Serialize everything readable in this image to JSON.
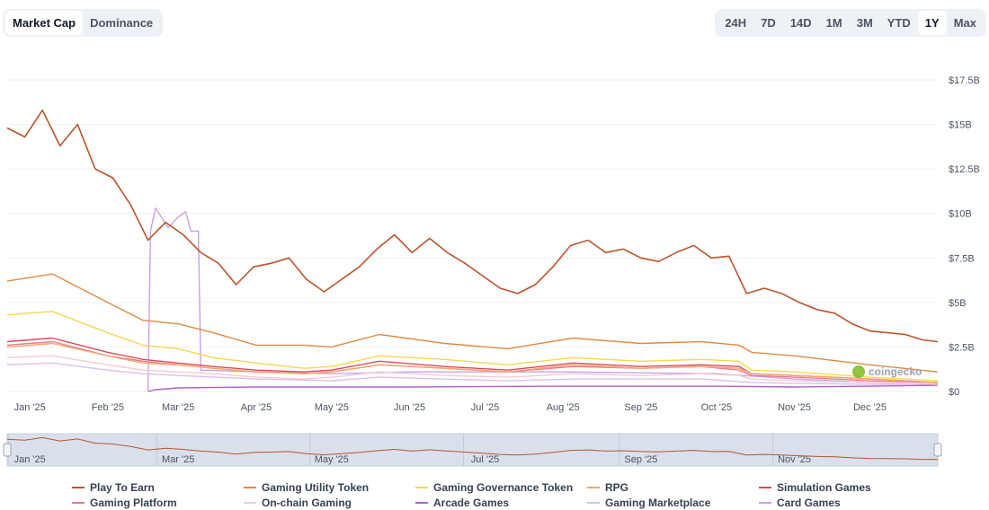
{
  "tabs": {
    "items": [
      "Market Cap",
      "Dominance"
    ],
    "active": "Market Cap"
  },
  "ranges": {
    "items": [
      "24H",
      "7D",
      "14D",
      "1M",
      "3M",
      "YTD",
      "1Y",
      "Max"
    ],
    "active": "1Y"
  },
  "watermark": "coingecko",
  "chart_data": {
    "type": "line",
    "xlim": [
      "2024-12-23",
      "2025-12-28"
    ],
    "ylim": [
      0,
      17.5
    ],
    "yticks": [
      {
        "v": 0,
        "label": "$0"
      },
      {
        "v": 2.5,
        "label": "$2.5B"
      },
      {
        "v": 5,
        "label": "$5B"
      },
      {
        "v": 7.5,
        "label": "$7.5B"
      },
      {
        "v": 10,
        "label": "$10B"
      },
      {
        "v": 12.5,
        "label": "$12.5B"
      },
      {
        "v": 15,
        "label": "$15B"
      },
      {
        "v": 17.5,
        "label": "$17.5B"
      }
    ],
    "xticks": [
      {
        "d": "2025-01-01",
        "label": "Jan '25"
      },
      {
        "d": "2025-02-01",
        "label": "Feb '25"
      },
      {
        "d": "2025-03-01",
        "label": "Mar '25"
      },
      {
        "d": "2025-04-01",
        "label": "Apr '25"
      },
      {
        "d": "2025-05-01",
        "label": "May '25"
      },
      {
        "d": "2025-06-01",
        "label": "Jun '25"
      },
      {
        "d": "2025-07-01",
        "label": "Jul '25"
      },
      {
        "d": "2025-08-01",
        "label": "Aug '25"
      },
      {
        "d": "2025-09-01",
        "label": "Sep '25"
      },
      {
        "d": "2025-10-01",
        "label": "Oct '25"
      },
      {
        "d": "2025-11-01",
        "label": "Nov '25"
      },
      {
        "d": "2025-12-01",
        "label": "Dec '25"
      }
    ],
    "navigator_ticks": [
      {
        "d": "2025-01-01",
        "label": "Jan '25"
      },
      {
        "d": "2025-03-01",
        "label": "Mar '25"
      },
      {
        "d": "2025-05-01",
        "label": "May '25"
      },
      {
        "d": "2025-07-01",
        "label": "Jul '25"
      },
      {
        "d": "2025-09-01",
        "label": "Sep '25"
      },
      {
        "d": "2025-11-01",
        "label": "Nov '25"
      }
    ],
    "grid": true,
    "legend_position": "bottom",
    "unit": "USD billions",
    "series": [
      {
        "name": "Play To Earn",
        "color": "#b9552c",
        "points": [
          [
            "2024-12-23",
            14.8
          ],
          [
            "2024-12-30",
            14.3
          ],
          [
            "2025-01-06",
            15.8
          ],
          [
            "2025-01-13",
            13.8
          ],
          [
            "2025-01-20",
            15.0
          ],
          [
            "2025-01-27",
            12.5
          ],
          [
            "2025-02-03",
            12.0
          ],
          [
            "2025-02-10",
            10.5
          ],
          [
            "2025-02-17",
            8.5
          ],
          [
            "2025-02-24",
            9.5
          ],
          [
            "2025-03-03",
            8.8
          ],
          [
            "2025-03-10",
            7.8
          ],
          [
            "2025-03-17",
            7.2
          ],
          [
            "2025-03-24",
            6.0
          ],
          [
            "2025-03-31",
            7.0
          ],
          [
            "2025-04-07",
            7.2
          ],
          [
            "2025-04-14",
            7.5
          ],
          [
            "2025-04-21",
            6.3
          ],
          [
            "2025-04-28",
            5.6
          ],
          [
            "2025-05-05",
            6.3
          ],
          [
            "2025-05-12",
            7.0
          ],
          [
            "2025-05-19",
            8.0
          ],
          [
            "2025-05-26",
            8.8
          ],
          [
            "2025-06-02",
            7.8
          ],
          [
            "2025-06-09",
            8.6
          ],
          [
            "2025-06-16",
            7.8
          ],
          [
            "2025-06-23",
            7.2
          ],
          [
            "2025-06-30",
            6.5
          ],
          [
            "2025-07-07",
            5.8
          ],
          [
            "2025-07-14",
            5.5
          ],
          [
            "2025-07-21",
            6.0
          ],
          [
            "2025-07-28",
            7.0
          ],
          [
            "2025-08-04",
            8.2
          ],
          [
            "2025-08-11",
            8.5
          ],
          [
            "2025-08-18",
            7.8
          ],
          [
            "2025-08-25",
            8.0
          ],
          [
            "2025-09-01",
            7.5
          ],
          [
            "2025-09-08",
            7.3
          ],
          [
            "2025-09-15",
            7.8
          ],
          [
            "2025-09-22",
            8.2
          ],
          [
            "2025-09-29",
            7.5
          ],
          [
            "2025-10-06",
            7.6
          ],
          [
            "2025-10-13",
            5.5
          ],
          [
            "2025-10-20",
            5.8
          ],
          [
            "2025-10-27",
            5.5
          ],
          [
            "2025-11-03",
            5.0
          ],
          [
            "2025-11-10",
            4.6
          ],
          [
            "2025-11-17",
            4.4
          ],
          [
            "2025-11-24",
            3.8
          ],
          [
            "2025-12-01",
            3.4
          ],
          [
            "2025-12-08",
            3.3
          ],
          [
            "2025-12-15",
            3.2
          ],
          [
            "2025-12-22",
            2.9
          ],
          [
            "2025-12-28",
            2.8
          ]
        ]
      },
      {
        "name": "Gaming Utility Token",
        "color": "#e08a45",
        "points": [
          [
            "2024-12-23",
            6.2
          ],
          [
            "2025-01-10",
            6.6
          ],
          [
            "2025-02-01",
            5.0
          ],
          [
            "2025-02-15",
            4.0
          ],
          [
            "2025-03-01",
            3.8
          ],
          [
            "2025-03-15",
            3.3
          ],
          [
            "2025-04-01",
            2.6
          ],
          [
            "2025-04-20",
            2.6
          ],
          [
            "2025-05-01",
            2.5
          ],
          [
            "2025-05-20",
            3.2
          ],
          [
            "2025-06-15",
            2.7
          ],
          [
            "2025-07-10",
            2.4
          ],
          [
            "2025-08-05",
            3.0
          ],
          [
            "2025-09-01",
            2.7
          ],
          [
            "2025-09-25",
            2.8
          ],
          [
            "2025-10-10",
            2.6
          ],
          [
            "2025-10-15",
            2.2
          ],
          [
            "2025-11-01",
            2.0
          ],
          [
            "2025-12-01",
            1.5
          ],
          [
            "2025-12-28",
            1.1
          ]
        ]
      },
      {
        "name": "Gaming Governance Token",
        "color": "#f5d84f",
        "points": [
          [
            "2024-12-23",
            4.3
          ],
          [
            "2025-01-10",
            4.5
          ],
          [
            "2025-02-01",
            3.3
          ],
          [
            "2025-02-15",
            2.6
          ],
          [
            "2025-03-01",
            2.4
          ],
          [
            "2025-03-15",
            1.9
          ],
          [
            "2025-04-01",
            1.6
          ],
          [
            "2025-04-20",
            1.3
          ],
          [
            "2025-05-01",
            1.4
          ],
          [
            "2025-05-20",
            2.0
          ],
          [
            "2025-06-15",
            1.8
          ],
          [
            "2025-07-10",
            1.5
          ],
          [
            "2025-08-05",
            1.9
          ],
          [
            "2025-09-01",
            1.7
          ],
          [
            "2025-09-25",
            1.8
          ],
          [
            "2025-10-10",
            1.7
          ],
          [
            "2025-10-15",
            1.2
          ],
          [
            "2025-11-01",
            1.1
          ],
          [
            "2025-12-01",
            0.8
          ],
          [
            "2025-12-28",
            0.6
          ]
        ]
      },
      {
        "name": "RPG",
        "color": "#f2a86a",
        "points": [
          [
            "2024-12-23",
            2.5
          ],
          [
            "2025-01-10",
            2.7
          ],
          [
            "2025-02-01",
            2.0
          ],
          [
            "2025-02-15",
            1.6
          ],
          [
            "2025-03-01",
            1.5
          ],
          [
            "2025-03-15",
            1.3
          ],
          [
            "2025-04-01",
            1.1
          ],
          [
            "2025-04-20",
            1.0
          ],
          [
            "2025-05-01",
            1.1
          ],
          [
            "2025-05-20",
            1.5
          ],
          [
            "2025-06-15",
            1.3
          ],
          [
            "2025-07-10",
            1.1
          ],
          [
            "2025-08-05",
            1.5
          ],
          [
            "2025-09-01",
            1.3
          ],
          [
            "2025-09-25",
            1.4
          ],
          [
            "2025-10-10",
            1.3
          ],
          [
            "2025-10-15",
            1.0
          ],
          [
            "2025-11-01",
            0.9
          ],
          [
            "2025-12-01",
            0.7
          ],
          [
            "2025-12-28",
            0.5
          ]
        ]
      },
      {
        "name": "Simulation Games",
        "color": "#d94a5a",
        "points": [
          [
            "2024-12-23",
            2.8
          ],
          [
            "2025-01-10",
            3.0
          ],
          [
            "2025-02-01",
            2.2
          ],
          [
            "2025-02-15",
            1.8
          ],
          [
            "2025-03-01",
            1.6
          ],
          [
            "2025-03-15",
            1.4
          ],
          [
            "2025-04-01",
            1.2
          ],
          [
            "2025-04-20",
            1.1
          ],
          [
            "2025-05-01",
            1.2
          ],
          [
            "2025-05-20",
            1.7
          ],
          [
            "2025-06-15",
            1.4
          ],
          [
            "2025-07-10",
            1.2
          ],
          [
            "2025-08-05",
            1.6
          ],
          [
            "2025-09-01",
            1.4
          ],
          [
            "2025-09-25",
            1.5
          ],
          [
            "2025-10-10",
            1.4
          ],
          [
            "2025-10-15",
            1.0
          ],
          [
            "2025-11-01",
            0.9
          ],
          [
            "2025-12-01",
            0.7
          ],
          [
            "2025-12-28",
            0.5
          ]
        ]
      },
      {
        "name": "Gaming Platform",
        "color": "#ea7a8c",
        "points": [
          [
            "2024-12-23",
            2.6
          ],
          [
            "2025-01-10",
            2.8
          ],
          [
            "2025-02-01",
            2.0
          ],
          [
            "2025-02-15",
            1.7
          ],
          [
            "2025-03-01",
            1.5
          ],
          [
            "2025-03-15",
            1.3
          ],
          [
            "2025-04-01",
            1.1
          ],
          [
            "2025-04-20",
            1.0
          ],
          [
            "2025-05-01",
            1.1
          ],
          [
            "2025-05-20",
            1.5
          ],
          [
            "2025-06-15",
            1.3
          ],
          [
            "2025-07-10",
            1.1
          ],
          [
            "2025-08-05",
            1.4
          ],
          [
            "2025-09-01",
            1.3
          ],
          [
            "2025-09-25",
            1.4
          ],
          [
            "2025-10-10",
            1.2
          ],
          [
            "2025-10-15",
            0.9
          ],
          [
            "2025-11-01",
            0.8
          ],
          [
            "2025-12-01",
            0.6
          ],
          [
            "2025-12-28",
            0.5
          ]
        ]
      },
      {
        "name": "On-chain Gaming",
        "color": "#f6c9d2",
        "points": [
          [
            "2024-12-23",
            1.9
          ],
          [
            "2025-01-10",
            2.0
          ],
          [
            "2025-02-01",
            1.5
          ],
          [
            "2025-02-15",
            1.2
          ],
          [
            "2025-03-01",
            1.1
          ],
          [
            "2025-03-15",
            1.0
          ],
          [
            "2025-04-01",
            0.8
          ],
          [
            "2025-04-20",
            0.7
          ],
          [
            "2025-05-01",
            0.8
          ],
          [
            "2025-05-20",
            1.1
          ],
          [
            "2025-06-15",
            0.9
          ],
          [
            "2025-07-10",
            0.8
          ],
          [
            "2025-08-05",
            1.0
          ],
          [
            "2025-09-01",
            0.9
          ],
          [
            "2025-09-25",
            1.0
          ],
          [
            "2025-10-10",
            0.9
          ],
          [
            "2025-10-15",
            0.7
          ],
          [
            "2025-11-01",
            0.6
          ],
          [
            "2025-12-01",
            0.5
          ],
          [
            "2025-12-28",
            0.4
          ]
        ]
      },
      {
        "name": "Arcade Games",
        "color": "#b062c4",
        "points": [
          [
            "2025-02-17",
            0.0
          ],
          [
            "2025-02-20",
            0.1
          ],
          [
            "2025-03-01",
            0.2
          ],
          [
            "2025-04-01",
            0.25
          ],
          [
            "2025-06-01",
            0.25
          ],
          [
            "2025-08-01",
            0.3
          ],
          [
            "2025-10-01",
            0.3
          ],
          [
            "2025-11-01",
            0.25
          ],
          [
            "2025-12-01",
            0.3
          ],
          [
            "2025-12-28",
            0.35
          ]
        ]
      },
      {
        "name": "Gaming Marketplace",
        "color": "#dcbfe9",
        "points": [
          [
            "2024-12-23",
            1.5
          ],
          [
            "2025-01-10",
            1.6
          ],
          [
            "2025-02-01",
            1.2
          ],
          [
            "2025-02-15",
            1.0
          ],
          [
            "2025-03-01",
            0.9
          ],
          [
            "2025-04-01",
            0.7
          ],
          [
            "2025-05-01",
            0.6
          ],
          [
            "2025-05-20",
            0.8
          ],
          [
            "2025-07-10",
            0.6
          ],
          [
            "2025-08-05",
            0.7
          ],
          [
            "2025-09-25",
            0.7
          ],
          [
            "2025-10-15",
            0.5
          ],
          [
            "2025-12-01",
            0.4
          ],
          [
            "2025-12-28",
            0.4
          ]
        ]
      },
      {
        "name": "Card Games",
        "color": "#c8a2ea",
        "points": [
          [
            "2025-02-17",
            0.0
          ],
          [
            "2025-02-18",
            9.0
          ],
          [
            "2025-02-20",
            10.3
          ],
          [
            "2025-02-25",
            9.2
          ],
          [
            "2025-03-01",
            9.8
          ],
          [
            "2025-03-04",
            10.1
          ],
          [
            "2025-03-06",
            9.0
          ],
          [
            "2025-03-09",
            9.0
          ],
          [
            "2025-03-10",
            1.2
          ],
          [
            "2025-04-01",
            1.1
          ],
          [
            "2025-05-01",
            1.0
          ],
          [
            "2025-06-01",
            1.1
          ],
          [
            "2025-08-01",
            1.1
          ],
          [
            "2025-10-01",
            1.0
          ],
          [
            "2025-11-01",
            0.7
          ],
          [
            "2025-12-01",
            0.5
          ],
          [
            "2025-12-28",
            0.4
          ]
        ]
      }
    ]
  }
}
